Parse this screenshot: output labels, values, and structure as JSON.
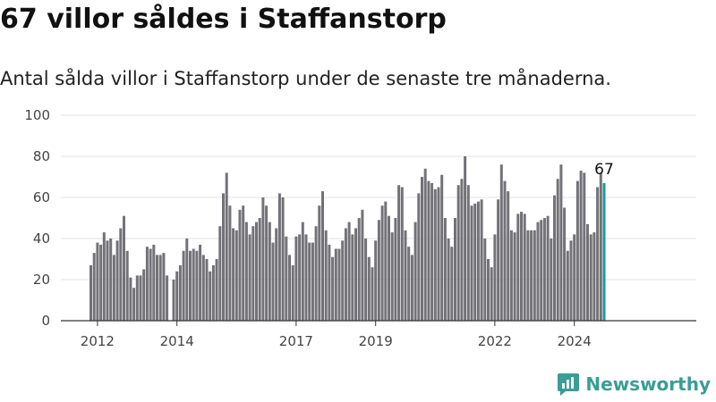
{
  "header": {
    "title": "67 villor såldes i Staffanstorp",
    "subtitle": "Antal sålda villor i Staffanstorp under de senaste tre månaderna."
  },
  "brand": {
    "name": "Newsworthy",
    "color": "#3a9d96"
  },
  "colors": {
    "bar": "#737278",
    "highlight": "#1f9a91",
    "grid": "#e3e3e3",
    "axis": "#333333"
  },
  "chart_data": {
    "type": "bar",
    "title": "67 villor såldes i Staffanstorp",
    "subtitle": "Antal sålda villor i Staffanstorp under de senaste tre månaderna.",
    "ylim": [
      0,
      100
    ],
    "yticks": [
      0,
      20,
      40,
      60,
      80,
      100
    ],
    "x_start": "2011-11",
    "x_end": "2024-10",
    "xticks": [
      {
        "label": "2012",
        "date": "2012-01"
      },
      {
        "label": "2014",
        "date": "2014-01"
      },
      {
        "label": "2017",
        "date": "2017-01"
      },
      {
        "label": "2019",
        "date": "2019-01"
      },
      {
        "label": "2022",
        "date": "2022-01"
      },
      {
        "label": "2024",
        "date": "2024-01"
      }
    ],
    "grid": true,
    "highlight_last": true,
    "last_value_label": "67",
    "values": [
      27,
      33,
      38,
      37,
      43,
      39,
      40,
      32,
      39,
      45,
      51,
      34,
      21,
      16,
      22,
      22,
      25,
      36,
      35,
      37,
      32,
      32,
      33,
      22,
      null,
      20,
      24,
      27,
      34,
      40,
      34,
      35,
      34,
      37,
      32,
      30,
      24,
      27,
      30,
      46,
      62,
      72,
      56,
      45,
      44,
      54,
      56,
      48,
      42,
      46,
      48,
      50,
      60,
      56,
      48,
      38,
      45,
      62,
      60,
      41,
      32,
      27,
      41,
      42,
      48,
      42,
      38,
      38,
      46,
      56,
      63,
      44,
      37,
      31,
      35,
      35,
      39,
      45,
      48,
      42,
      45,
      50,
      54,
      40,
      31,
      26,
      39,
      49,
      56,
      58,
      51,
      43,
      50,
      66,
      65,
      44,
      36,
      32,
      48,
      62,
      70,
      74,
      68,
      67,
      64,
      65,
      71,
      50,
      40,
      36,
      50,
      66,
      69,
      80,
      66,
      56,
      57,
      58,
      59,
      40,
      30,
      26,
      42,
      59,
      76,
      68,
      63,
      44,
      43,
      52,
      53,
      52,
      44,
      44,
      44,
      48,
      49,
      50,
      51,
      40,
      61,
      69,
      76,
      55,
      34,
      39,
      42,
      68,
      73,
      72,
      47,
      42,
      43,
      65,
      72,
      67
    ]
  }
}
